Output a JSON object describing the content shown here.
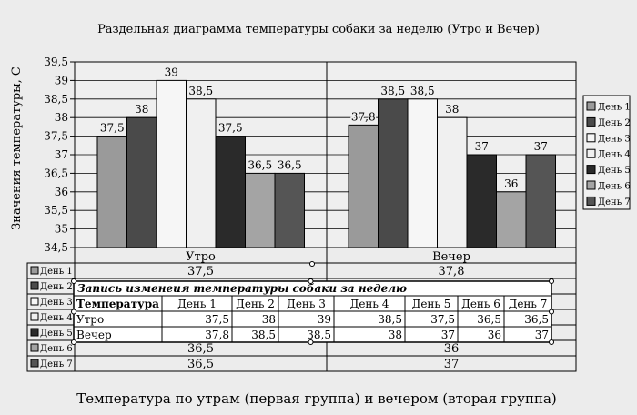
{
  "chart_data": {
    "type": "bar",
    "title": "Раздельная диаграмма температуры собаки за неделю (Утро и Вечер)",
    "ylabel": "Значения температуры, С",
    "xlabel": "Температура по утрам (первая группа) и вечером (вторая группа)",
    "ylim": [
      34.5,
      39.5
    ],
    "yticks": [
      "34,5",
      "35",
      "35,5",
      "36",
      "36,5",
      "37",
      "37,5",
      "38",
      "38,5",
      "39",
      "39,5"
    ],
    "categories": [
      "Утро",
      "Вечер"
    ],
    "series": [
      {
        "name": "День 1",
        "values": [
          37.5,
          37.8
        ],
        "labels": [
          "37,5",
          "37,8"
        ],
        "color": "#9a9a9a"
      },
      {
        "name": "День 2",
        "values": [
          38,
          38.5
        ],
        "labels": [
          "38",
          "38,5"
        ],
        "color": "#4a4a4a"
      },
      {
        "name": "День 3",
        "values": [
          39,
          38.5
        ],
        "labels": [
          "39",
          "38,5"
        ],
        "color": "#f6f6f6"
      },
      {
        "name": "День 4",
        "values": [
          38.5,
          38
        ],
        "labels": [
          "38,5",
          "38"
        ],
        "color": "#f0f0f0"
      },
      {
        "name": "День 5",
        "values": [
          37.5,
          37
        ],
        "labels": [
          "37,5",
          "37"
        ],
        "color": "#2a2a2a"
      },
      {
        "name": "День 6",
        "values": [
          36.5,
          36
        ],
        "labels": [
          "36,5",
          "36"
        ],
        "color": "#a4a4a4"
      },
      {
        "name": "День 7",
        "values": [
          36.5,
          37
        ],
        "labels": [
          "36,5",
          "37"
        ],
        "color": "#555555"
      }
    ],
    "legend_position": "right",
    "grid": true
  },
  "overlay_table": {
    "title": "Запись изменеия температуры собаки за неделю",
    "header": [
      "Температура",
      "День 1",
      "День 2",
      "День 3",
      "День 4",
      "День 5",
      "День 6",
      "День 7"
    ],
    "rows": [
      [
        "Утро",
        "37,5",
        "38",
        "39",
        "38,5",
        "37,5",
        "36,5",
        "36,5"
      ],
      [
        "Вечер",
        "37,8",
        "38,5",
        "38,5",
        "38",
        "37",
        "36",
        "37"
      ]
    ]
  }
}
